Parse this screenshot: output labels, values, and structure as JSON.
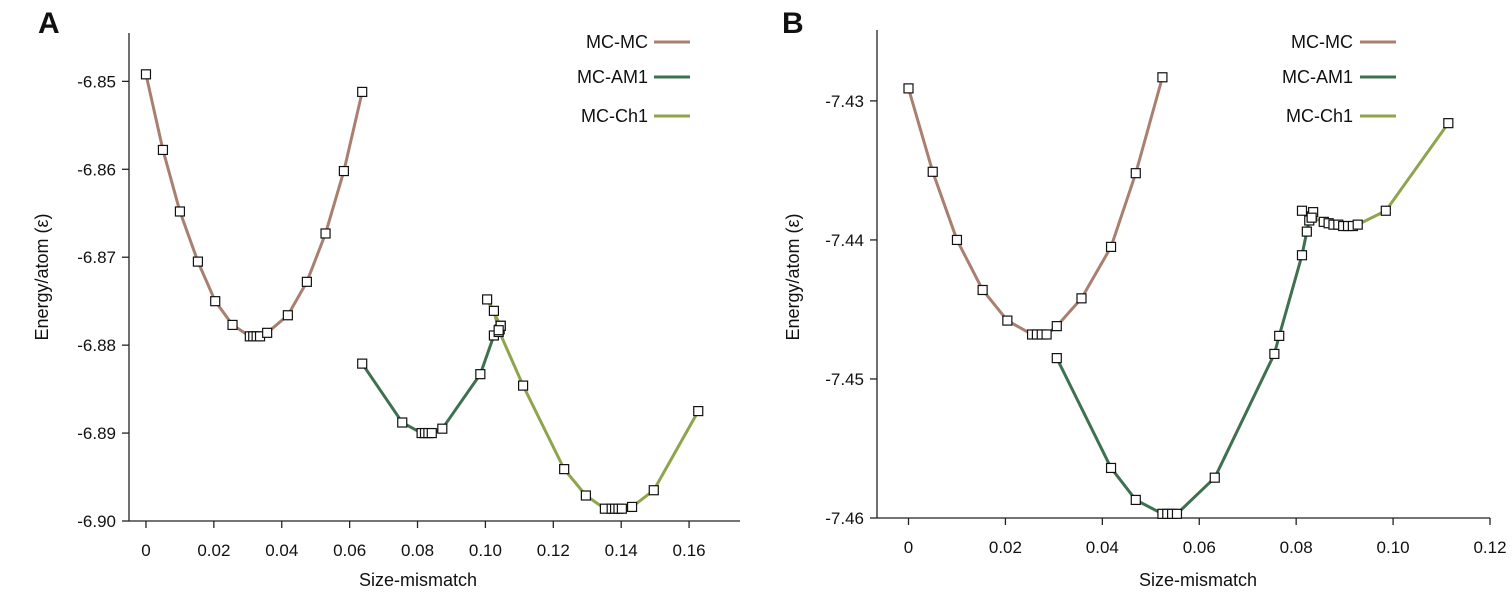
{
  "colors": {
    "mc_mc": "#a98070",
    "mc_am1": "#3f7050",
    "mc_ch1": "#8ea54d"
  },
  "chart_data": [
    {
      "type": "line",
      "panel_label": "A",
      "xlabel": "Size-mismatch",
      "ylabel": "Energy/atom (ε)",
      "xlim": [
        -0.005,
        0.175
      ],
      "ylim": [
        -6.9,
        -6.8445
      ],
      "xticks": [
        0,
        0.02,
        0.04,
        0.06,
        0.08,
        0.1,
        0.12,
        0.14,
        0.16
      ],
      "xtick_labels": [
        "0",
        "0.02",
        "0.04",
        "0.06",
        "0.08",
        "0.10",
        "0.12",
        "0.14",
        "0.16"
      ],
      "yticks": [
        -6.85,
        -6.86,
        -6.87,
        -6.88,
        -6.89,
        -6.9
      ],
      "ytick_labels": [
        "-6.85",
        "-6.86",
        "-6.87",
        "-6.88",
        "-6.89",
        "-6.90"
      ],
      "legend": [
        "MC-MC",
        "MC-AM1",
        "MC-Ch1"
      ],
      "series": [
        {
          "name": "MC-MC",
          "x": [
            0,
            0.005,
            0.01,
            0.0153,
            0.0204,
            0.0255,
            0.0306,
            0.0316,
            0.0326,
            0.0336,
            0.0357,
            0.0418,
            0.0474,
            0.0529,
            0.0583,
            0.0637
          ],
          "y": [
            -6.8492,
            -6.8578,
            -6.8648,
            -6.8705,
            -6.875,
            -6.8777,
            -6.879,
            -6.879,
            -6.879,
            -6.879,
            -6.8786,
            -6.8766,
            -6.8728,
            -6.8673,
            -6.8602,
            -6.8512
          ]
        },
        {
          "name": "MC-AM1",
          "x": [
            0.0637,
            0.0755,
            0.0812,
            0.0822,
            0.0832,
            0.0842,
            0.0873,
            0.0985,
            0.1025,
            0.1039,
            0.1042,
            0.1045
          ],
          "y": [
            -6.8821,
            -6.8888,
            -6.89,
            -6.89,
            -6.89,
            -6.89,
            -6.8895,
            -6.8833,
            -6.8789,
            -6.8785,
            -6.8782,
            -6.8778
          ]
        },
        {
          "name": "MC-Ch1",
          "x": [
            0.1045,
            0.1005,
            0.1025,
            0.1039,
            0.1111,
            0.1232,
            0.1296,
            0.1352,
            0.1372,
            0.1382,
            0.1392,
            0.1402,
            0.1432,
            0.1496,
            0.1627
          ],
          "y": [
            -6.8778,
            -6.8748,
            -6.8761,
            -6.8783,
            -6.8846,
            -6.8941,
            -6.8971,
            -6.8986,
            -6.8986,
            -6.8986,
            -6.8986,
            -6.8986,
            -6.8984,
            -6.8965,
            -6.8875
          ]
        }
      ]
    },
    {
      "type": "line",
      "panel_label": "B",
      "xlabel": "Size-mismatch",
      "ylabel": "Energy/atom (ε)",
      "xlim": [
        -0.0065,
        0.12
      ],
      "ylim": [
        -7.46,
        -7.4249
      ],
      "xticks": [
        0,
        0.02,
        0.04,
        0.06,
        0.08,
        0.1,
        0.12
      ],
      "xtick_labels": [
        "0",
        "0.02",
        "0.04",
        "0.06",
        "0.08",
        "0.10",
        "0.12"
      ],
      "yticks": [
        -7.43,
        -7.44,
        -7.45,
        -7.46
      ],
      "ytick_labels": [
        "-7.43",
        "-7.44",
        "-7.45",
        "-7.46"
      ],
      "legend": [
        "MC-MC",
        "MC-AM1",
        "MC-Ch1"
      ],
      "series": [
        {
          "name": "MC-MC",
          "x": [
            0,
            0.005,
            0.01,
            0.0153,
            0.0204,
            0.0255,
            0.0265,
            0.0275,
            0.0285,
            0.0306,
            0.0357,
            0.0418,
            0.0469,
            0.0524
          ],
          "y": [
            -7.4291,
            -7.4351,
            -7.44,
            -7.4436,
            -7.4458,
            -7.4468,
            -7.4468,
            -7.4468,
            -7.4468,
            -7.4462,
            -7.4442,
            -7.4405,
            -7.4352,
            -7.4283
          ]
        },
        {
          "name": "MC-AM1",
          "x": [
            0.0306,
            0.0418,
            0.0469,
            0.0524,
            0.0534,
            0.0544,
            0.0554,
            0.0632,
            0.0755,
            0.0765,
            0.0812,
            0.0822,
            0.0827,
            0.0832,
            0.0835
          ],
          "y": [
            -7.4485,
            -7.4564,
            -7.4587,
            -7.4597,
            -7.4597,
            -7.4597,
            -7.4597,
            -7.4571,
            -7.4482,
            -7.4469,
            -7.4411,
            -7.4394,
            -7.4386,
            -7.4383,
            -7.438
          ]
        },
        {
          "name": "MC-Ch1",
          "x": [
            0.0812,
            0.0832,
            0.0857,
            0.0867,
            0.0877,
            0.0887,
            0.0897,
            0.0907,
            0.0917,
            0.0927,
            0.0985,
            0.1114
          ],
          "y": [
            -7.4379,
            -7.4384,
            -7.4387,
            -7.4388,
            -7.4389,
            -7.4389,
            -7.439,
            -7.439,
            -7.439,
            -7.4389,
            -7.4379,
            -7.4316
          ]
        }
      ]
    }
  ]
}
